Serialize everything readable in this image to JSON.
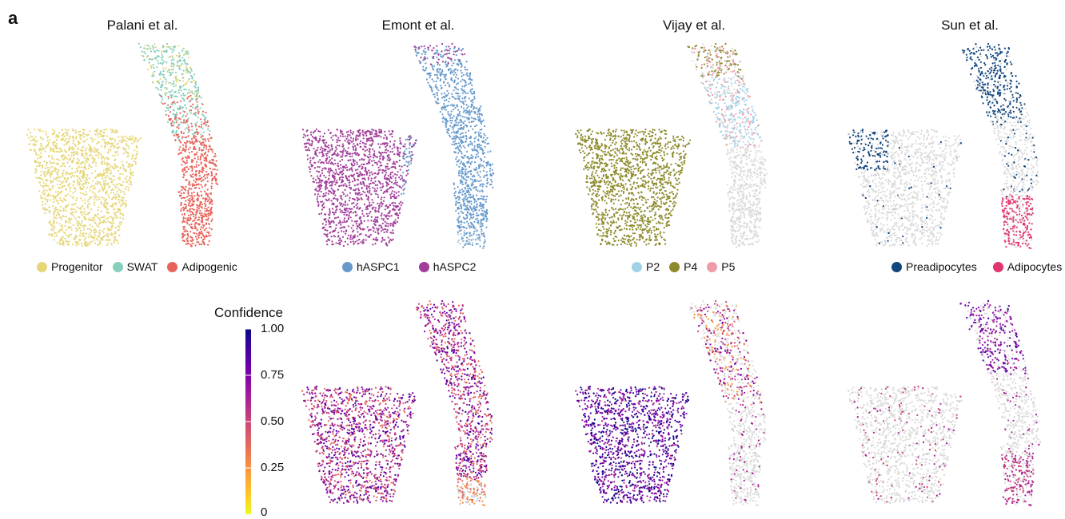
{
  "figure": {
    "panel_label": "a",
    "colorbar": {
      "title": "Confidence",
      "ticks": [
        "1.00",
        "0.75",
        "0.50",
        "0.25",
        "0"
      ]
    }
  },
  "chart_data": [
    {
      "type": "scatter",
      "title": "Palani et al.",
      "xlabel": "",
      "ylabel": "",
      "coloring": "cell type",
      "categories": [
        {
          "name": "Progenitor",
          "color": "#E6D77A"
        },
        {
          "name": "SWAT",
          "color": "#86CFBD"
        },
        {
          "name": "Adipogenic",
          "color": "#E8635A"
        }
      ],
      "grid": false
    },
    {
      "type": "scatter",
      "title": "Emont et al.",
      "xlabel": "",
      "ylabel": "",
      "coloring": "cell type",
      "categories": [
        {
          "name": "hASPC1",
          "color": "#6699CC"
        },
        {
          "name": "hASPC2",
          "color": "#A13D9A"
        }
      ],
      "grid": false
    },
    {
      "type": "scatter",
      "title": "Vijay et al.",
      "xlabel": "",
      "ylabel": "",
      "coloring": "cell type",
      "categories": [
        {
          "name": "P2",
          "color": "#9FD2E8"
        },
        {
          "name": "P4",
          "color": "#8C8A2A"
        },
        {
          "name": "P5",
          "color": "#EE9CA8"
        }
      ],
      "grid": false
    },
    {
      "type": "scatter",
      "title": "Sun et al.",
      "xlabel": "",
      "ylabel": "",
      "coloring": "cell type",
      "categories": [
        {
          "name": "Preadipocytes",
          "color": "#12467E"
        },
        {
          "name": "Adipocytes",
          "color": "#E0356E"
        }
      ],
      "grid": false
    },
    {
      "type": "scatter",
      "title": "",
      "coloring": "confidence",
      "colormap": "plasma",
      "color_range": [
        0,
        1
      ]
    },
    {
      "type": "scatter",
      "title": "",
      "coloring": "confidence",
      "colormap": "plasma",
      "color_range": [
        0,
        1
      ]
    },
    {
      "type": "scatter",
      "title": "",
      "coloring": "confidence",
      "colormap": "plasma",
      "color_range": [
        0,
        1
      ]
    }
  ]
}
